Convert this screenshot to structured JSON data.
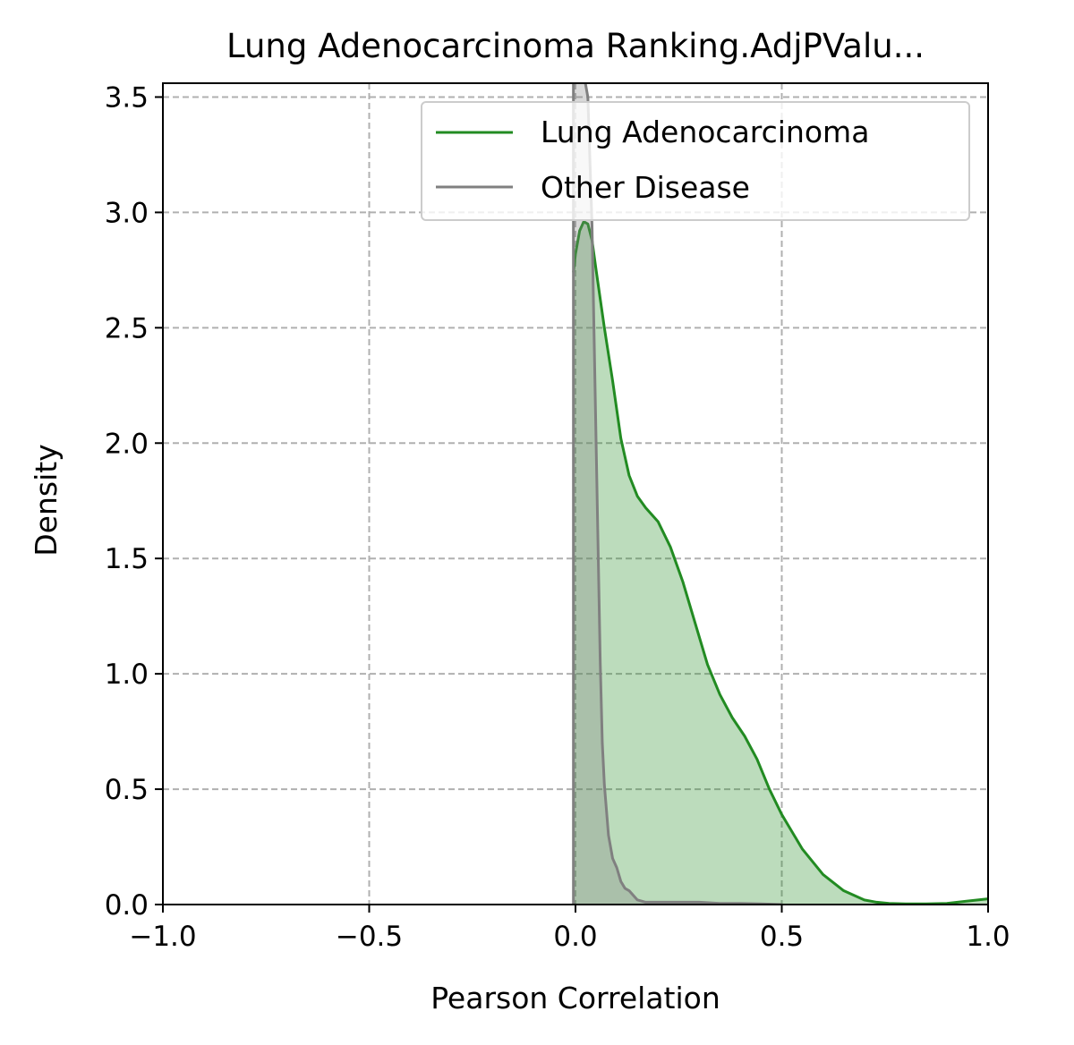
{
  "chart_data": {
    "type": "area",
    "title": "Lung Adenocarcinoma Ranking.AdjPValu...",
    "xlabel": "Pearson Correlation",
    "ylabel": "Density",
    "xlim": [
      -1.0,
      1.0
    ],
    "ylim": [
      0,
      3.56
    ],
    "grid": true,
    "legend_position": "top-right",
    "xticks": [
      -1.0,
      -0.5,
      0.0,
      0.5,
      1.0
    ],
    "xtick_labels": [
      "−1.0",
      "−0.5",
      "0.0",
      "0.5",
      "1.0"
    ],
    "yticks": [
      0.0,
      0.5,
      1.0,
      1.5,
      2.0,
      2.5,
      3.0,
      3.5
    ],
    "ytick_labels": [
      "0.0",
      "0.5",
      "1.0",
      "1.5",
      "2.0",
      "2.5",
      "3.0",
      "3.5"
    ],
    "series": [
      {
        "name": "Lung Adenocarcinoma",
        "color": "#228b22",
        "fill_color": "#228b22",
        "fill_opacity": 0.3,
        "x": [
          -0.005,
          0.0,
          0.01,
          0.02,
          0.03,
          0.04,
          0.05,
          0.07,
          0.09,
          0.11,
          0.13,
          0.15,
          0.17,
          0.2,
          0.23,
          0.26,
          0.29,
          0.32,
          0.35,
          0.38,
          0.41,
          0.44,
          0.47,
          0.5,
          0.55,
          0.6,
          0.65,
          0.7,
          0.73,
          0.76,
          0.8,
          0.85,
          0.9,
          0.95,
          1.0
        ],
        "y": [
          2.74,
          2.82,
          2.92,
          2.96,
          2.95,
          2.88,
          2.75,
          2.5,
          2.27,
          2.02,
          1.86,
          1.77,
          1.72,
          1.66,
          1.55,
          1.4,
          1.22,
          1.04,
          0.91,
          0.81,
          0.73,
          0.63,
          0.5,
          0.39,
          0.24,
          0.13,
          0.06,
          0.02,
          0.01,
          0.005,
          0.003,
          0.003,
          0.005,
          0.015,
          0.025
        ]
      },
      {
        "name": "Other Disease",
        "color": "#808080",
        "fill_color": "#808080",
        "fill_opacity": 0.3,
        "x": [
          -0.005,
          -0.005,
          0.0,
          0.01,
          0.02,
          0.03,
          0.04,
          0.05,
          0.06,
          0.065,
          0.07,
          0.08,
          0.09,
          0.1,
          0.11,
          0.12,
          0.13,
          0.15,
          0.17,
          0.19,
          0.21,
          0.23,
          0.25,
          0.28,
          0.3,
          0.35,
          0.4,
          0.45,
          0.5
        ],
        "y": [
          0.0,
          3.6,
          3.6,
          3.6,
          3.6,
          3.5,
          2.95,
          2.0,
          1.05,
          0.7,
          0.52,
          0.3,
          0.2,
          0.16,
          0.1,
          0.07,
          0.06,
          0.02,
          0.01,
          0.01,
          0.01,
          0.01,
          0.01,
          0.01,
          0.01,
          0.005,
          0.005,
          0.003,
          0.0
        ]
      }
    ]
  }
}
